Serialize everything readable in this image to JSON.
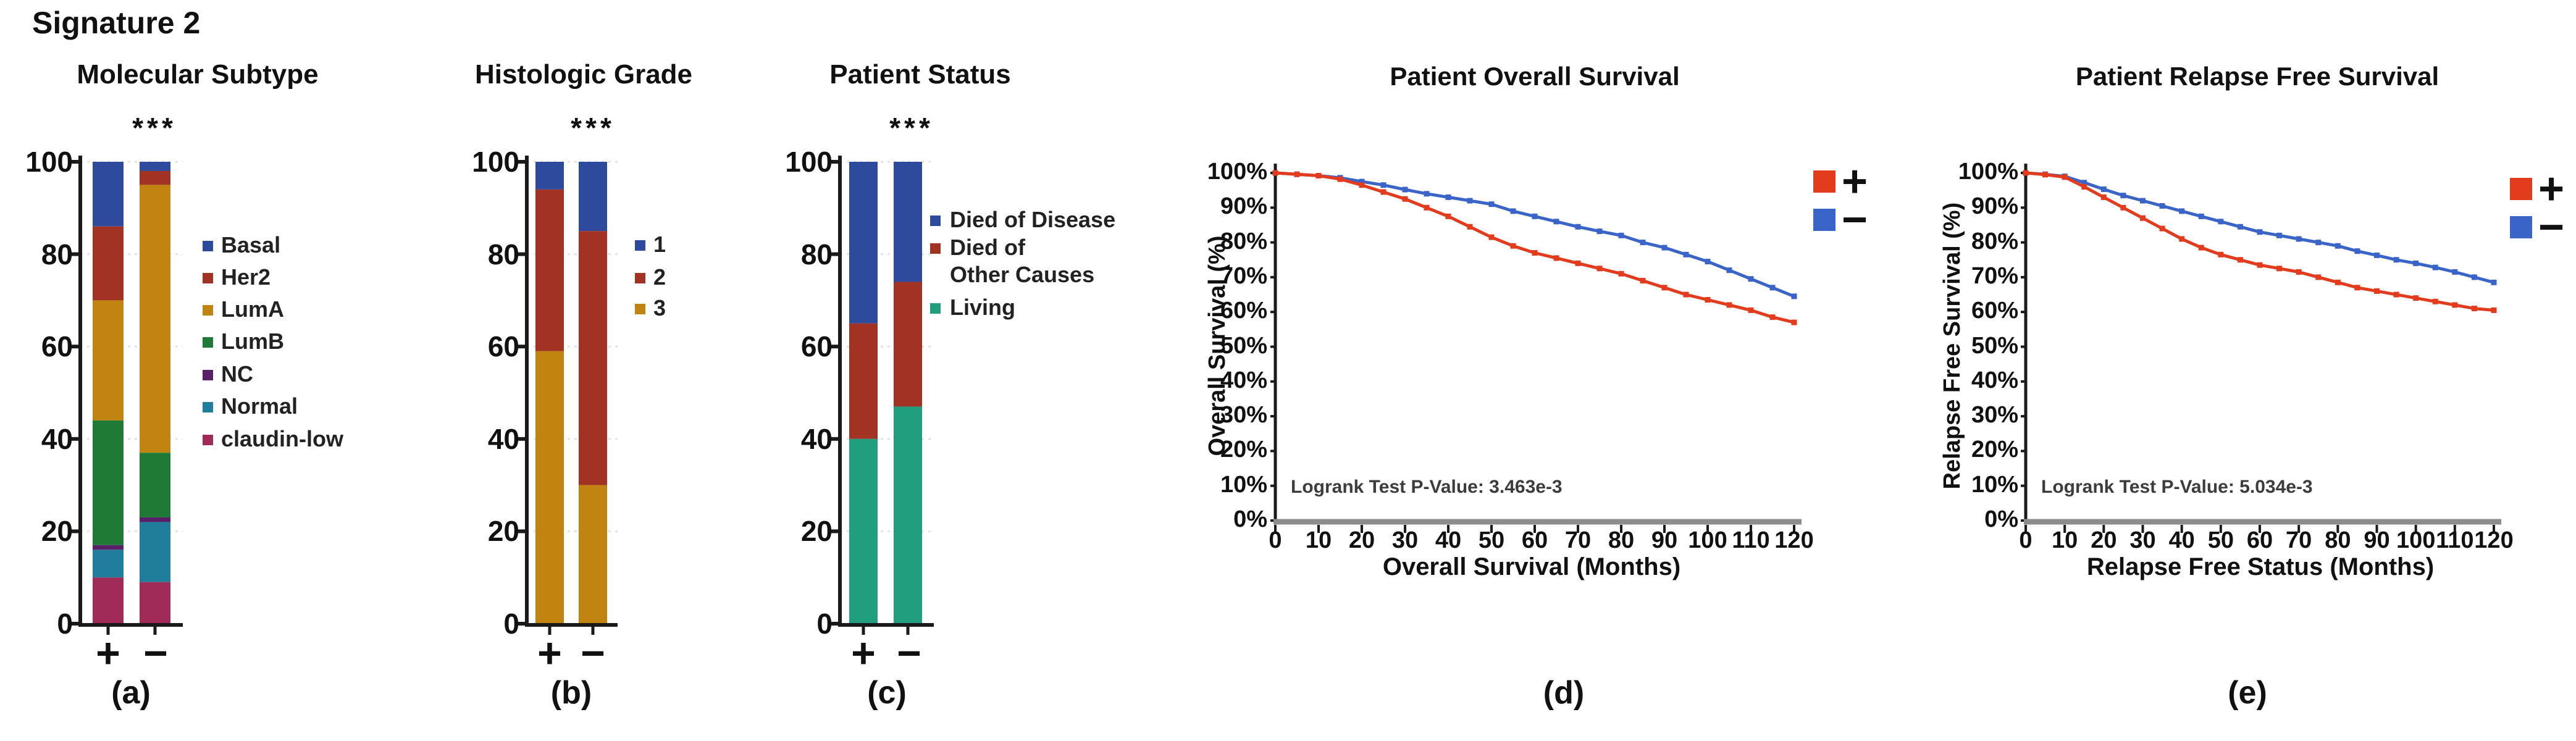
{
  "figure_title": "Signature 2",
  "panel_letters": {
    "a": "(a)",
    "b": "(b)",
    "c": "(c)",
    "d": "(d)",
    "e": "(e)"
  },
  "chart_data": [
    {
      "type": "stacked_bar",
      "panel": "a",
      "title": "Molecular Subtype",
      "significance": "***",
      "categories": [
        "+",
        "−"
      ],
      "ylim": [
        0,
        100
      ],
      "y_ticks": [
        100,
        80,
        60,
        40,
        20,
        0
      ],
      "legend_position": "right",
      "grid": true,
      "series": [
        {
          "name": "Basal",
          "color": "#2e4a9c",
          "values": [
            14,
            2
          ]
        },
        {
          "name": "Her2",
          "color": "#a23224",
          "values": [
            16,
            3
          ]
        },
        {
          "name": "LumA",
          "color": "#c28410",
          "values": [
            26,
            58
          ]
        },
        {
          "name": "LumB",
          "color": "#1e7a34",
          "values": [
            27,
            14
          ]
        },
        {
          "name": "NC",
          "color": "#5a1f69",
          "values": [
            1,
            1
          ]
        },
        {
          "name": "Normal",
          "color": "#207d9b",
          "values": [
            6,
            13
          ]
        },
        {
          "name": "claudin-low",
          "color": "#a12b58",
          "values": [
            10,
            9
          ]
        }
      ]
    },
    {
      "type": "stacked_bar",
      "panel": "b",
      "title": "Histologic Grade",
      "significance": "***",
      "categories": [
        "+",
        "−"
      ],
      "ylim": [
        0,
        100
      ],
      "y_ticks": [
        100,
        80,
        60,
        40,
        20,
        0
      ],
      "legend_position": "right",
      "grid": true,
      "series": [
        {
          "name": "1",
          "color": "#2e4a9c",
          "values": [
            6,
            15
          ]
        },
        {
          "name": "2",
          "color": "#a23224",
          "values": [
            35,
            55
          ]
        },
        {
          "name": "3",
          "color": "#c28410",
          "values": [
            59,
            30
          ]
        }
      ]
    },
    {
      "type": "stacked_bar",
      "panel": "c",
      "title": "Patient Status",
      "significance": "***",
      "categories": [
        "+",
        "−"
      ],
      "ylim": [
        0,
        100
      ],
      "y_ticks": [
        100,
        80,
        60,
        40,
        20,
        0
      ],
      "legend_position": "right",
      "grid": true,
      "series": [
        {
          "name": "Died of Disease",
          "color": "#2e4a9c",
          "values": [
            35,
            26
          ]
        },
        {
          "name": "Died of Other Causes",
          "name_lines": [
            "Died of",
            "Other Causes"
          ],
          "color": "#a23224",
          "values": [
            25,
            27
          ]
        },
        {
          "name": "Living",
          "color": "#219e7d",
          "values": [
            40,
            47
          ]
        }
      ]
    },
    {
      "type": "line",
      "panel": "d",
      "title": "Patient Overall Survival",
      "xlabel": "Overall Survival (Months)",
      "ylabel": "Overall Survival (%)",
      "annotation": "Logrank Test P-Value: 3.463e-3",
      "xlim": [
        0,
        120
      ],
      "ylim": [
        0,
        100
      ],
      "x_ticks": [
        0,
        10,
        20,
        30,
        40,
        50,
        60,
        70,
        80,
        90,
        100,
        110,
        120
      ],
      "y_tick_labels": [
        "100%",
        "90%",
        "80%",
        "70%",
        "60%",
        "50%",
        "40%",
        "30%",
        "20%",
        "10%",
        "0%"
      ],
      "legend_position": "right",
      "grid": false,
      "series": [
        {
          "name": "+",
          "color": "#e23b1d",
          "x": [
            0,
            5,
            10,
            15,
            20,
            25,
            30,
            35,
            40,
            45,
            50,
            55,
            60,
            65,
            70,
            75,
            80,
            85,
            90,
            95,
            100,
            105,
            110,
            115,
            120
          ],
          "y": [
            100,
            99.6,
            99.2,
            98.2,
            96.5,
            94.5,
            92.5,
            90,
            87.5,
            84.5,
            81.5,
            79,
            77,
            75.5,
            74,
            72.5,
            71,
            69,
            67,
            65,
            63.5,
            62,
            60.5,
            58.5,
            57
          ]
        },
        {
          "name": "−",
          "color": "#3a64c8",
          "x": [
            0,
            5,
            10,
            15,
            20,
            25,
            30,
            35,
            40,
            45,
            50,
            55,
            60,
            65,
            70,
            75,
            80,
            85,
            90,
            95,
            100,
            105,
            110,
            115,
            120
          ],
          "y": [
            100,
            99.6,
            99.2,
            98.6,
            97.5,
            96.5,
            95.2,
            94,
            93,
            92,
            91,
            89,
            87.5,
            86,
            84.5,
            83.2,
            82,
            80,
            78.5,
            76.5,
            74.5,
            72,
            69.5,
            67,
            64.5
          ]
        }
      ]
    },
    {
      "type": "line",
      "panel": "e",
      "title": "Patient Relapse Free Survival",
      "xlabel": "Relapse Free Status (Months)",
      "ylabel": "Relapse Free Survival (%)",
      "annotation": "Logrank Test P-Value: 5.034e-3",
      "xlim": [
        0,
        120
      ],
      "ylim": [
        0,
        100
      ],
      "x_ticks": [
        0,
        10,
        20,
        30,
        40,
        50,
        60,
        70,
        80,
        90,
        100,
        110,
        120
      ],
      "y_tick_labels": [
        "100%",
        "90%",
        "80%",
        "70%",
        "60%",
        "50%",
        "40%",
        "30%",
        "20%",
        "10%",
        "0%"
      ],
      "legend_position": "right",
      "grid": false,
      "series": [
        {
          "name": "+",
          "color": "#e23b1d",
          "x": [
            0,
            5,
            10,
            15,
            20,
            25,
            30,
            35,
            40,
            45,
            50,
            55,
            60,
            65,
            70,
            75,
            80,
            85,
            90,
            95,
            100,
            105,
            110,
            115,
            120
          ],
          "y": [
            100,
            99.5,
            98.8,
            96,
            93,
            90,
            87,
            84,
            81,
            78.5,
            76.5,
            75,
            73.5,
            72.5,
            71.5,
            70,
            68.5,
            67,
            66,
            65,
            64,
            63,
            62,
            61,
            60.5
          ]
        },
        {
          "name": "−",
          "color": "#3a64c8",
          "x": [
            0,
            5,
            10,
            15,
            20,
            25,
            30,
            35,
            40,
            45,
            50,
            55,
            60,
            65,
            70,
            75,
            80,
            85,
            90,
            95,
            100,
            105,
            110,
            115,
            120
          ],
          "y": [
            100,
            99.6,
            99,
            97.2,
            95.3,
            93.5,
            92,
            90.5,
            89,
            87.5,
            86,
            84.5,
            83,
            82,
            81,
            80,
            79,
            77.5,
            76.3,
            75,
            74,
            72.8,
            71.5,
            70,
            68.5
          ]
        }
      ]
    }
  ]
}
